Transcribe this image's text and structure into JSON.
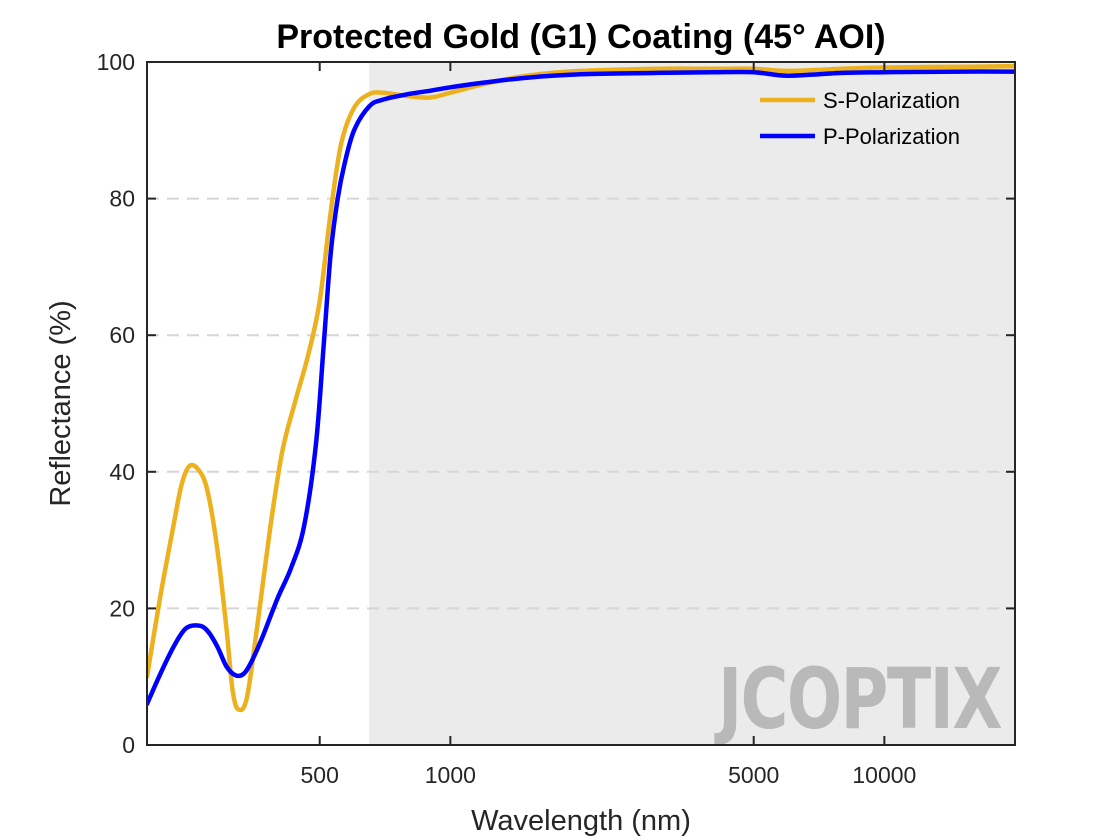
{
  "chart_data": {
    "type": "line",
    "title": "Protected Gold (G1) Coating  (45° AOI)",
    "xlabel": "Wavelength (nm)",
    "ylabel": "Reflectance (%)",
    "xscale": "log",
    "xlim": [
      200,
      20000
    ],
    "ylim": [
      0,
      100
    ],
    "xticks": [
      500,
      1000,
      5000,
      10000
    ],
    "yticks": [
      0,
      20,
      40,
      60,
      80,
      100
    ],
    "grid": "horizontal-dashed",
    "legend_position": "top-right",
    "highlight_region": {
      "x_start": 650,
      "x_end": 20000,
      "color": "#ebebeb"
    },
    "watermark": "JCOPTIX",
    "series": [
      {
        "name": "S-Polarization",
        "color": "#EDB120",
        "x": [
          200,
          215,
          230,
          240,
          250,
          262,
          275,
          290,
          305,
          315,
          325,
          340,
          360,
          385,
          410,
          440,
          470,
          500,
          530,
          560,
          600,
          650,
          700,
          800,
          900,
          1000,
          1200,
          1500,
          2000,
          3000,
          4000,
          5000,
          6000,
          8000,
          10000,
          15000,
          20000
        ],
        "y": [
          10,
          22,
          32,
          38,
          40.8,
          40.4,
          37.5,
          29,
          17,
          8,
          5.2,
          7,
          18,
          32,
          43,
          50.5,
          57,
          65,
          78,
          88,
          93.3,
          95.3,
          95.5,
          95,
          94.8,
          95.5,
          96.8,
          98,
          98.7,
          99,
          99,
          99,
          98.7,
          99,
          99.2,
          99.3,
          99.4
        ]
      },
      {
        "name": "P-Polarization",
        "color": "#0000FF",
        "x": [
          200,
          215,
          230,
          245,
          262,
          275,
          290,
          305,
          320,
          335,
          350,
          370,
          400,
          430,
          460,
          490,
          510,
          530,
          550,
          570,
          600,
          650,
          700,
          800,
          900,
          1000,
          1200,
          1500,
          2000,
          3000,
          4000,
          5000,
          6000,
          8000,
          10000,
          15000,
          20000
        ],
        "y": [
          6,
          10.5,
          14.3,
          17,
          17.5,
          16.8,
          14.5,
          11.5,
          10.2,
          10.5,
          12.5,
          16,
          21.5,
          26,
          32,
          44,
          58,
          72,
          80,
          85,
          90,
          93.5,
          94.5,
          95.3,
          95.8,
          96.3,
          97,
          97.7,
          98.2,
          98.4,
          98.5,
          98.5,
          98,
          98.4,
          98.5,
          98.6,
          98.6
        ]
      }
    ]
  }
}
